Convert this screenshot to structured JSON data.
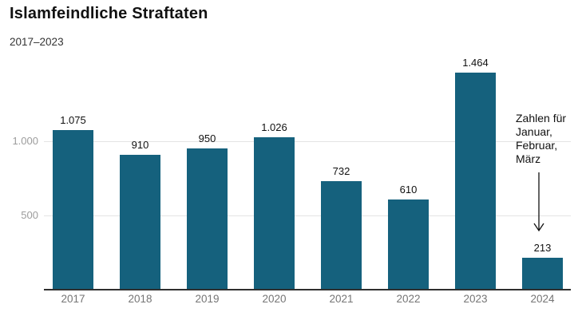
{
  "header": {
    "title": "Islamfeindliche Straftaten",
    "subtitle": "2017–2023"
  },
  "annotation": {
    "text": "Zahlen für Januar, Februar, März"
  },
  "colors": {
    "bar": "#15617d",
    "grid": "#e4e4e4",
    "axis": "#2f2f2f",
    "ytick_label": "#9c9c9c",
    "xtick_label": "#757575",
    "value_label": "#111111",
    "annotation_text": "#111111"
  },
  "chart_data": {
    "type": "bar",
    "title": "Islamfeindliche Straftaten",
    "subtitle": "2017–2023",
    "categories": [
      "2017",
      "2018",
      "2019",
      "2020",
      "2021",
      "2022",
      "2023",
      "2024"
    ],
    "values": [
      1075,
      910,
      950,
      1026,
      732,
      610,
      1464,
      213
    ],
    "value_labels": [
      "1.075",
      "910",
      "950",
      "1.026",
      "732",
      "610",
      "1.464",
      "213"
    ],
    "xlabel": "",
    "ylabel": "",
    "ylim": [
      0,
      1500
    ],
    "yticks": [
      500,
      1000
    ],
    "ytick_labels": [
      "500",
      "1.000"
    ],
    "grid": "horizontal",
    "legend": "none",
    "annotation": {
      "target_category": "2024",
      "text": "Zahlen für Januar, Februar, März"
    }
  }
}
